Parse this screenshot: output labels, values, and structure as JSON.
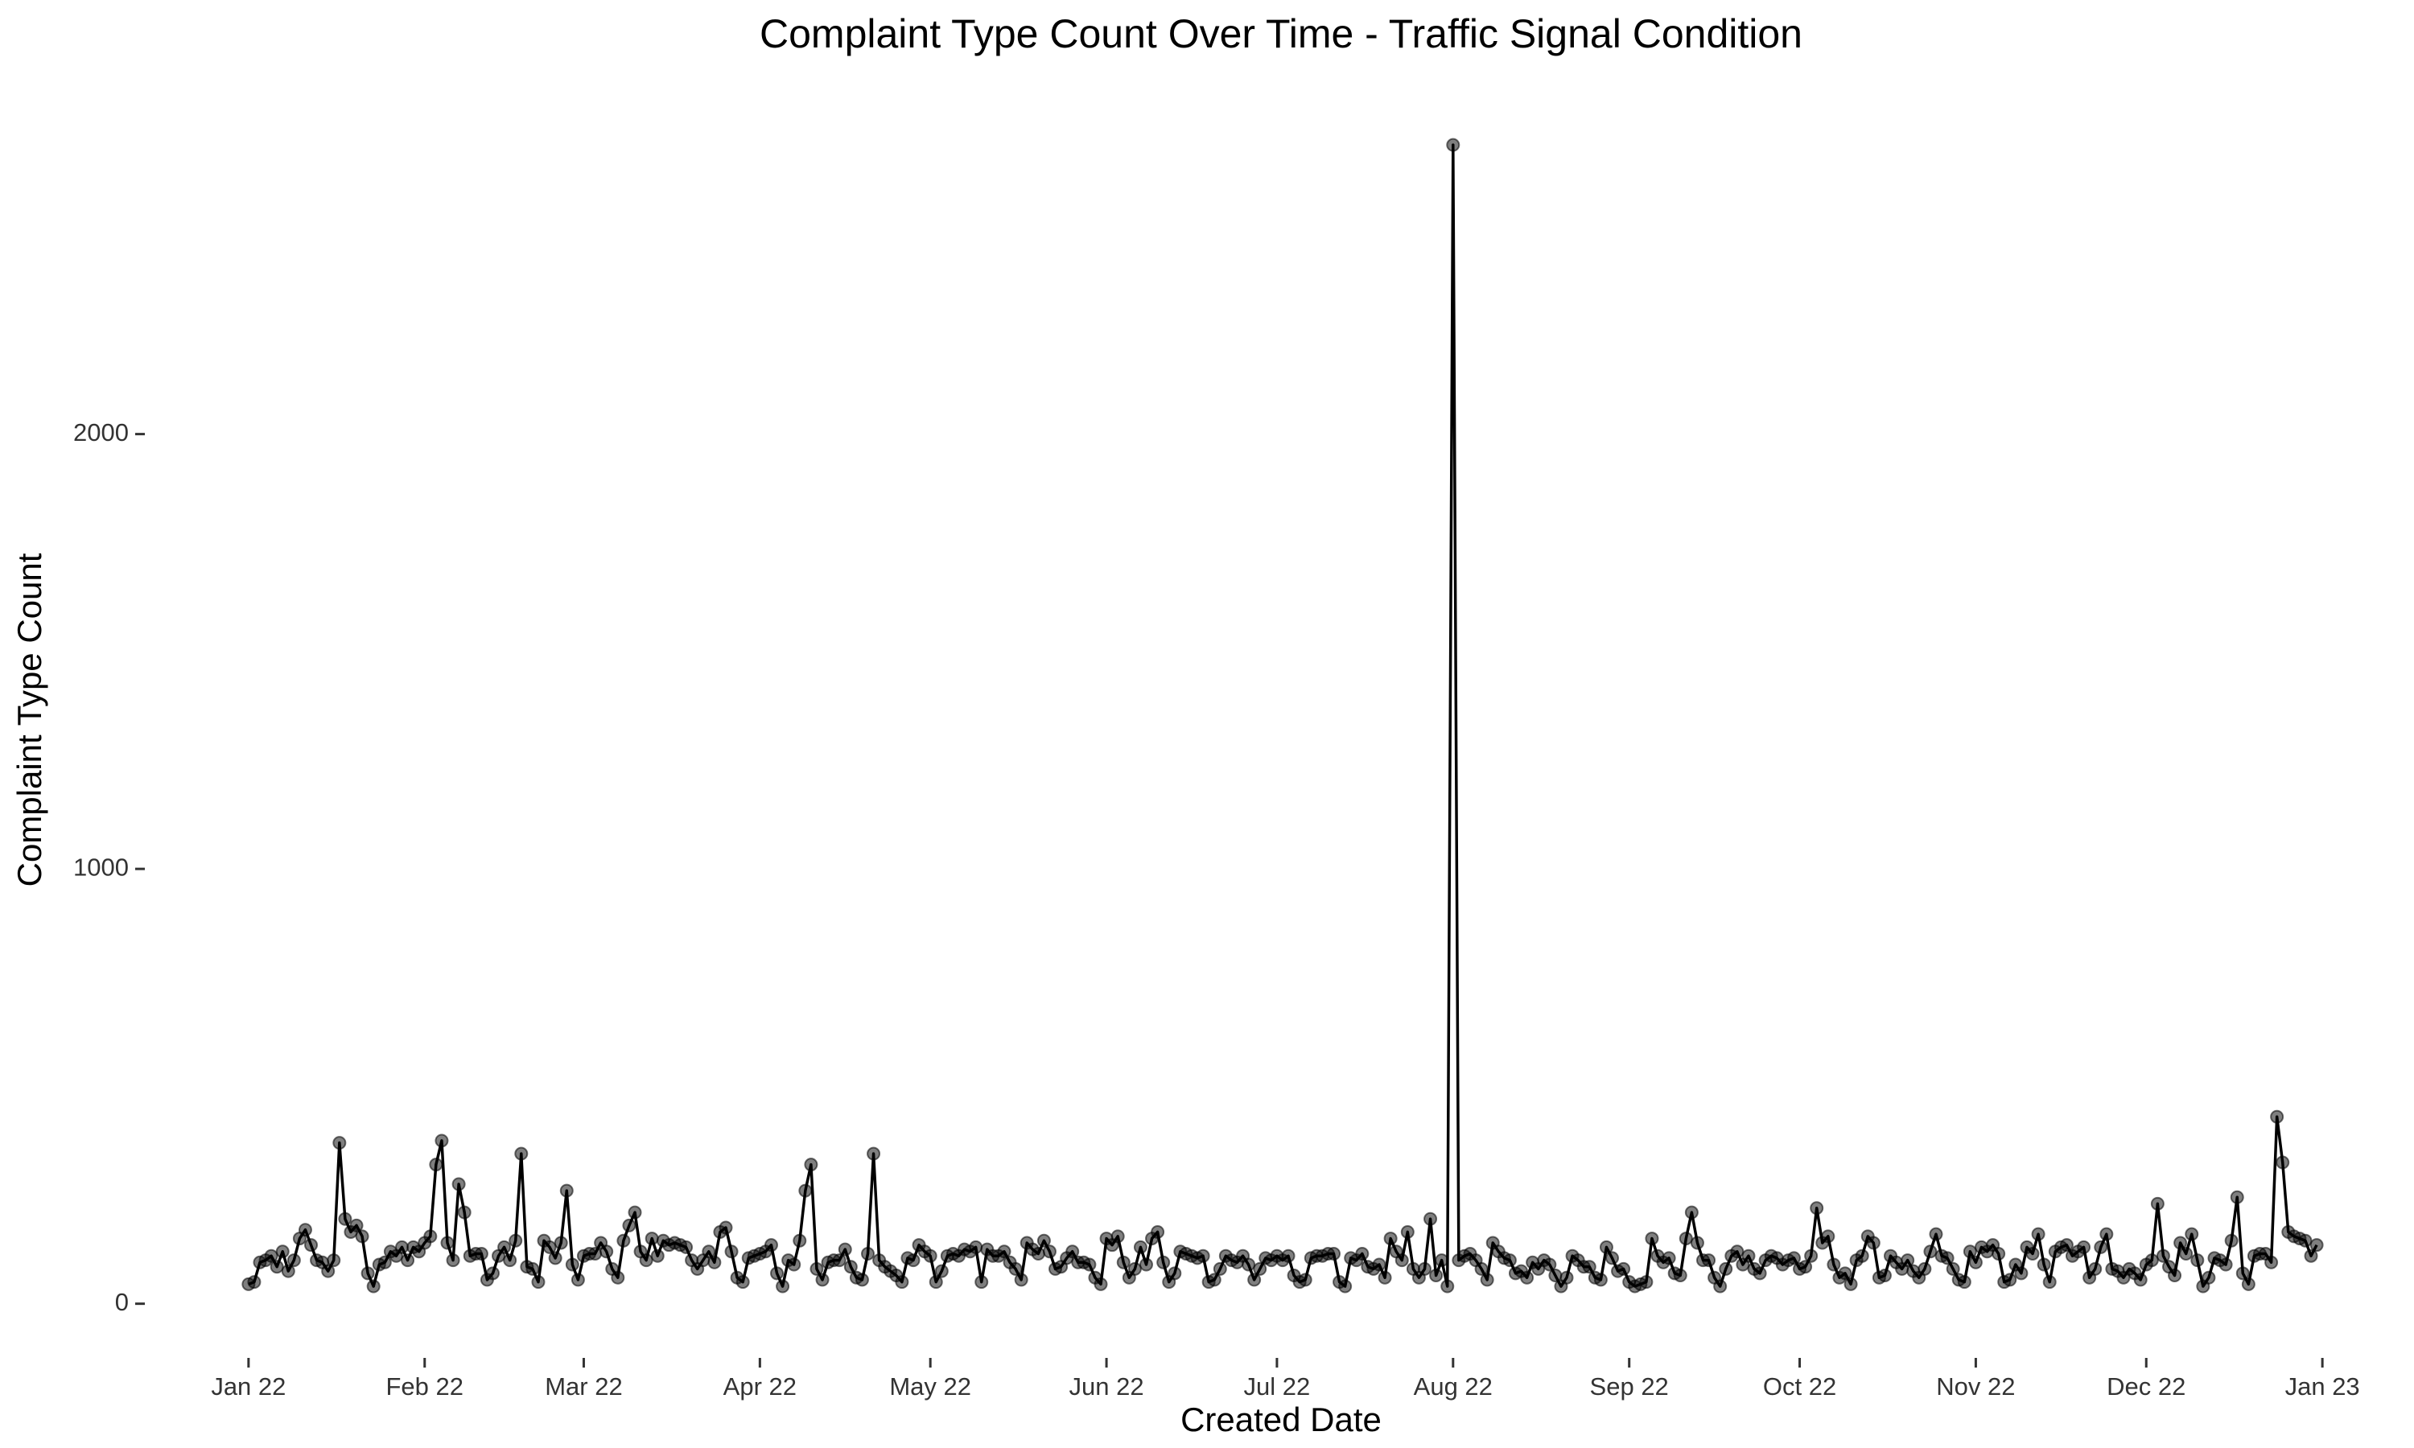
{
  "chart_data": {
    "type": "line",
    "title": "Complaint Type Count Over Time - Traffic Signal Condition",
    "x_label": "Created Date",
    "y_label": "Complaint Type Count",
    "color": "#000000",
    "xlim": [
      -14,
      379
    ],
    "xticks": [
      {
        "value": 0,
        "label": "Jan 22"
      },
      {
        "value": 31,
        "label": "Feb 22"
      },
      {
        "value": 59,
        "label": "Mar 22"
      },
      {
        "value": 90,
        "label": "Apr 22"
      },
      {
        "value": 120,
        "label": "May 22"
      },
      {
        "value": 151,
        "label": "Jun 22"
      },
      {
        "value": 181,
        "label": "Jul 22"
      },
      {
        "value": 212,
        "label": "Aug 22"
      },
      {
        "value": 243,
        "label": "Sep 22"
      },
      {
        "value": 273,
        "label": "Oct 22"
      },
      {
        "value": 304,
        "label": "Nov 22"
      },
      {
        "value": 334,
        "label": "Dec 22"
      },
      {
        "value": 365,
        "label": "Jan 23"
      }
    ],
    "ylim": [
      -95,
      2780
    ],
    "yticks": [
      0,
      1000,
      2000
    ],
    "grid": false,
    "values": [
      45,
      50,
      95,
      100,
      110,
      85,
      120,
      75,
      100,
      150,
      170,
      135,
      100,
      95,
      75,
      100,
      370,
      195,
      165,
      180,
      155,
      70,
      40,
      90,
      95,
      120,
      110,
      130,
      100,
      130,
      120,
      140,
      155,
      320,
      375,
      140,
      100,
      275,
      210,
      110,
      115,
      115,
      55,
      70,
      110,
      130,
      100,
      145,
      345,
      85,
      80,
      50,
      145,
      130,
      105,
      140,
      260,
      90,
      55,
      110,
      115,
      115,
      140,
      120,
      80,
      60,
      145,
      180,
      210,
      120,
      100,
      150,
      110,
      145,
      135,
      140,
      135,
      130,
      100,
      80,
      100,
      120,
      95,
      165,
      175,
      120,
      60,
      50,
      105,
      110,
      115,
      120,
      135,
      70,
      40,
      100,
      90,
      145,
      260,
      320,
      80,
      55,
      95,
      100,
      100,
      125,
      85,
      60,
      55,
      115,
      345,
      100,
      85,
      75,
      65,
      50,
      105,
      100,
      135,
      120,
      110,
      50,
      75,
      110,
      115,
      110,
      125,
      120,
      130,
      50,
      125,
      110,
      110,
      120,
      95,
      80,
      55,
      140,
      125,
      115,
      145,
      120,
      80,
      85,
      105,
      120,
      95,
      95,
      90,
      60,
      45,
      150,
      135,
      155,
      95,
      60,
      80,
      130,
      90,
      150,
      165,
      95,
      50,
      70,
      120,
      115,
      110,
      105,
      110,
      50,
      55,
      80,
      110,
      100,
      95,
      110,
      90,
      55,
      80,
      105,
      100,
      110,
      100,
      110,
      65,
      50,
      55,
      105,
      110,
      110,
      115,
      115,
      50,
      40,
      105,
      100,
      115,
      85,
      80,
      90,
      60,
      150,
      120,
      100,
      165,
      80,
      60,
      80,
      195,
      65,
      100,
      40,
      2665,
      100,
      110,
      115,
      100,
      80,
      55,
      140,
      120,
      105,
      100,
      70,
      75,
      60,
      95,
      80,
      100,
      90,
      65,
      40,
      60,
      110,
      100,
      85,
      85,
      60,
      55,
      130,
      105,
      75,
      80,
      50,
      40,
      45,
      50,
      150,
      110,
      95,
      105,
      70,
      65,
      150,
      210,
      140,
      100,
      100,
      60,
      40,
      80,
      110,
      120,
      90,
      110,
      80,
      70,
      100,
      110,
      105,
      90,
      100,
      105,
      80,
      85,
      110,
      220,
      140,
      155,
      90,
      60,
      70,
      45,
      100,
      110,
      155,
      140,
      60,
      65,
      110,
      95,
      80,
      100,
      75,
      60,
      80,
      120,
      160,
      110,
      105,
      80,
      55,
      50,
      120,
      95,
      130,
      120,
      135,
      115,
      50,
      55,
      90,
      70,
      130,
      115,
      160,
      90,
      50,
      120,
      130,
      135,
      110,
      120,
      130,
      60,
      80,
      130,
      160,
      80,
      75,
      60,
      80,
      70,
      55,
      90,
      100,
      230,
      110,
      85,
      65,
      140,
      115,
      160,
      100,
      40,
      60,
      105,
      100,
      90,
      145,
      245,
      70,
      45,
      110,
      115,
      115,
      95,
      430,
      325,
      165,
      155,
      150,
      145,
      110,
      135
    ]
  }
}
